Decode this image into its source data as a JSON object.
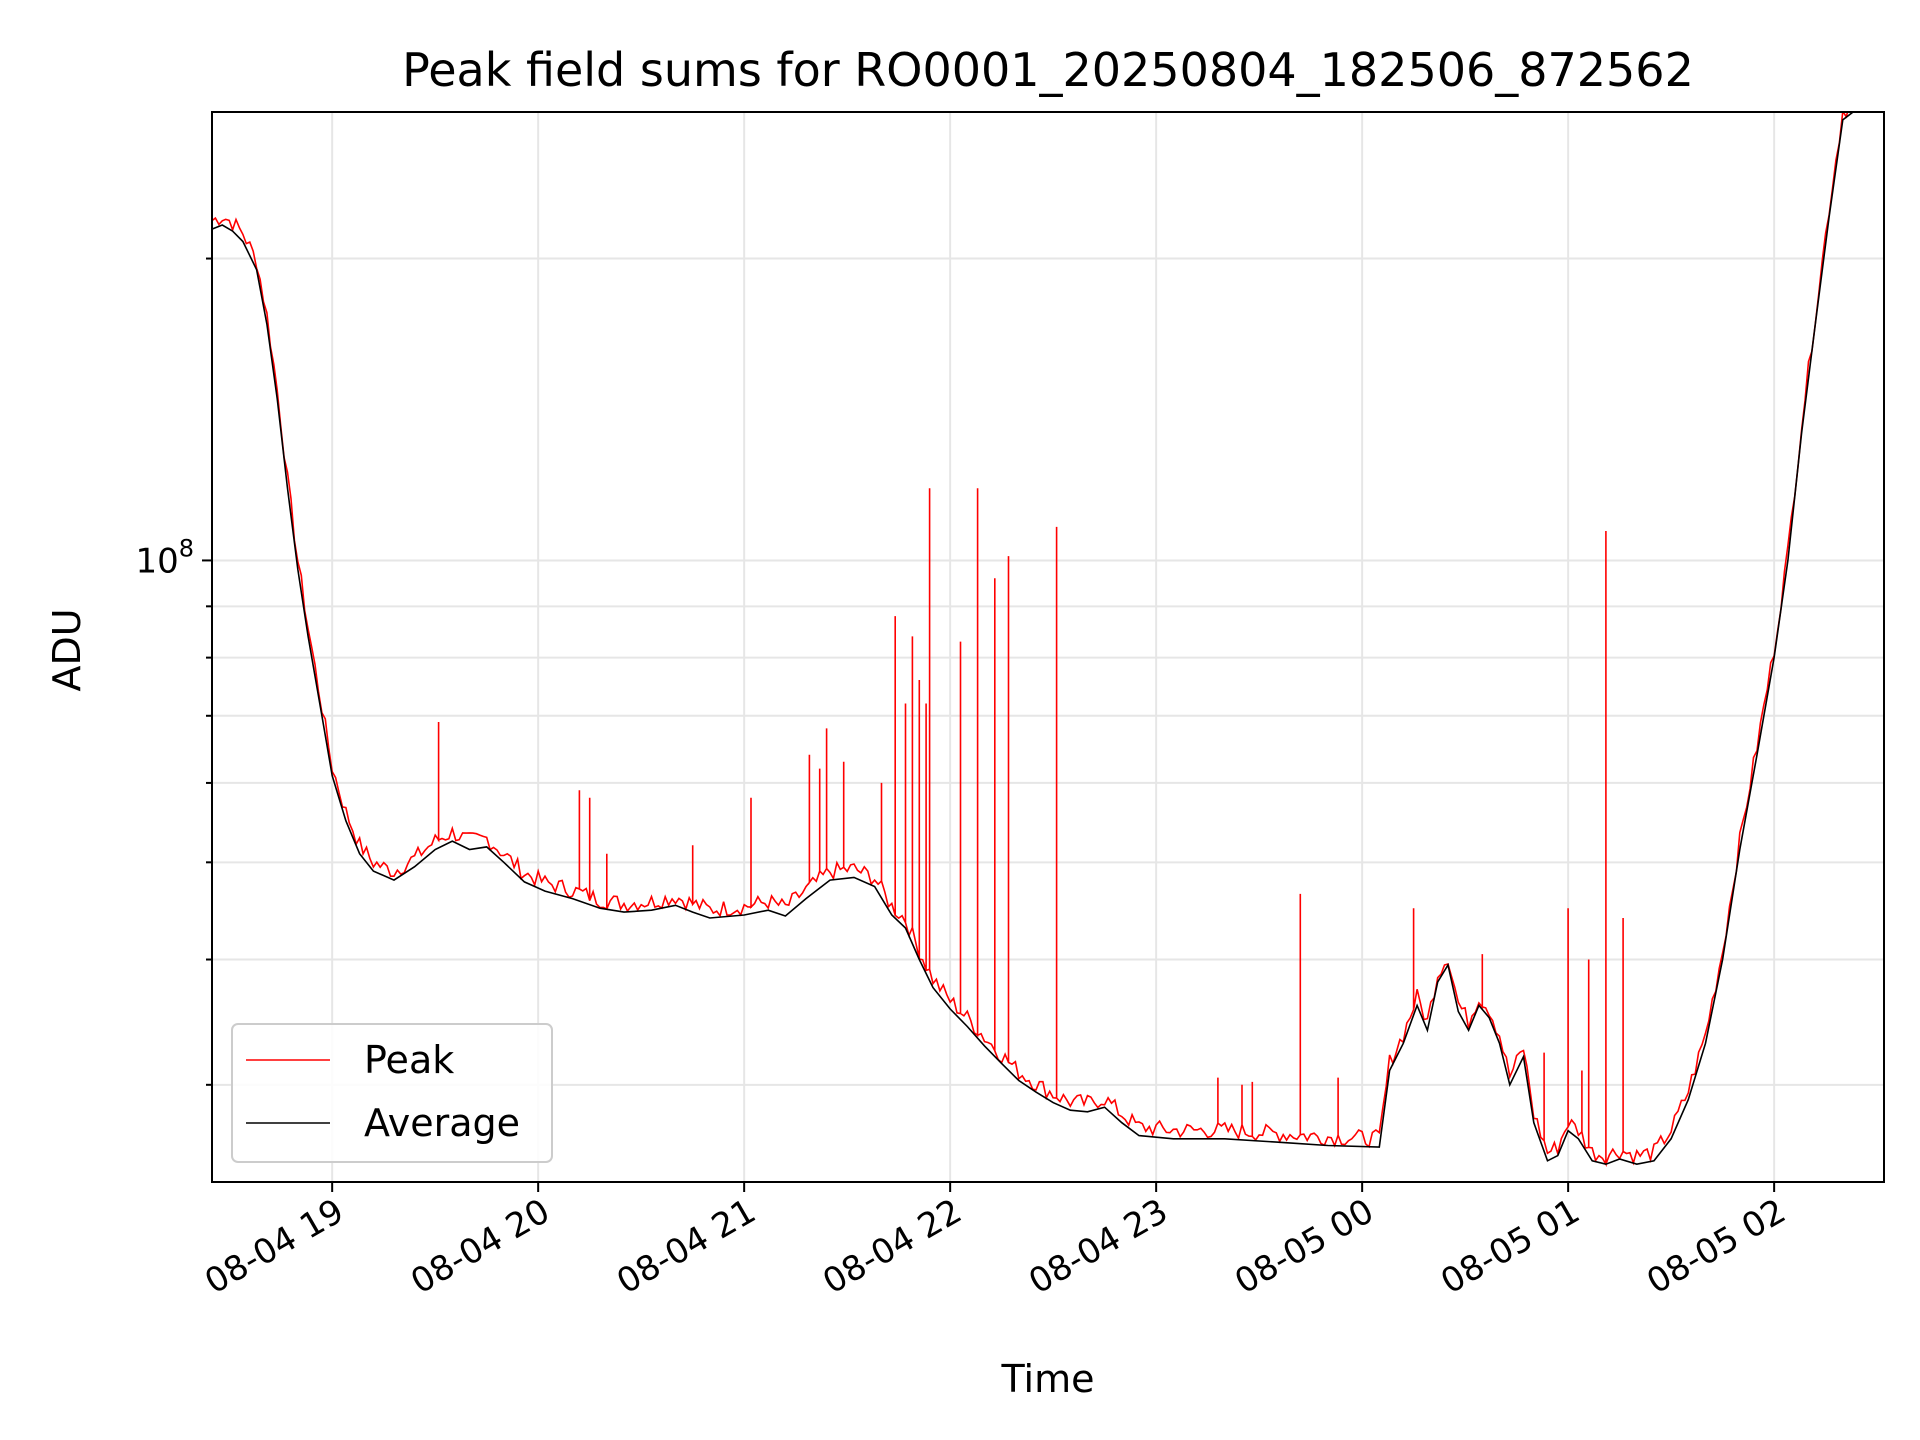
{
  "chart_data": {
    "type": "line",
    "title": "Peak field sums for RO0001_20250804_182506_872562",
    "xlabel": "Time",
    "ylabel": "ADU",
    "y_scale": "log",
    "xlim": [
      "2025-08-04 18:25",
      "2025-08-05 02:32"
    ],
    "ylim": [
      24000000,
      280000000
    ],
    "x_ticks": [
      {
        "label": "08-04 19",
        "value": "2025-08-04 19:00"
      },
      {
        "label": "08-04 20",
        "value": "2025-08-04 20:00"
      },
      {
        "label": "08-04 21",
        "value": "2025-08-04 21:00"
      },
      {
        "label": "08-04 22",
        "value": "2025-08-04 22:00"
      },
      {
        "label": "08-04 23",
        "value": "2025-08-04 23:00"
      },
      {
        "label": "08-05 00",
        "value": "2025-08-05 00:00"
      },
      {
        "label": "08-05 01",
        "value": "2025-08-05 01:00"
      },
      {
        "label": "08-05 02",
        "value": "2025-08-05 02:00"
      }
    ],
    "y_ticks": [
      {
        "label": "10",
        "exponent": "8",
        "value": 100000000
      }
    ],
    "grid": true,
    "legend_position": "lower-left",
    "series": [
      {
        "name": "Average",
        "color": "#000000",
        "points": [
          [
            "2025-08-04 18:25",
            214000000
          ],
          [
            "2025-08-04 18:28",
            216000000
          ],
          [
            "2025-08-04 18:31",
            213000000
          ],
          [
            "2025-08-04 18:34",
            208000000
          ],
          [
            "2025-08-04 18:38",
            195000000
          ],
          [
            "2025-08-04 18:41",
            172000000
          ],
          [
            "2025-08-04 18:44",
            145000000
          ],
          [
            "2025-08-04 18:47",
            118000000
          ],
          [
            "2025-08-04 18:50",
            98000000
          ],
          [
            "2025-08-04 18:53",
            84000000
          ],
          [
            "2025-08-04 18:57",
            70000000
          ],
          [
            "2025-08-04 19:00",
            61000000
          ],
          [
            "2025-08-04 19:04",
            55000000
          ],
          [
            "2025-08-04 19:08",
            51000000
          ],
          [
            "2025-08-04 19:12",
            49000000
          ],
          [
            "2025-08-04 19:18",
            48000000
          ],
          [
            "2025-08-04 19:24",
            49500000
          ],
          [
            "2025-08-04 19:30",
            51500000
          ],
          [
            "2025-08-04 19:35",
            52500000
          ],
          [
            "2025-08-04 19:40",
            51500000
          ],
          [
            "2025-08-04 19:45",
            51800000
          ],
          [
            "2025-08-04 19:50",
            50000000
          ],
          [
            "2025-08-04 19:56",
            47800000
          ],
          [
            "2025-08-04 20:02",
            46800000
          ],
          [
            "2025-08-04 20:10",
            46000000
          ],
          [
            "2025-08-04 20:18",
            45000000
          ],
          [
            "2025-08-04 20:25",
            44600000
          ],
          [
            "2025-08-04 20:33",
            44800000
          ],
          [
            "2025-08-04 20:40",
            45300000
          ],
          [
            "2025-08-04 20:45",
            44600000
          ],
          [
            "2025-08-04 20:50",
            44000000
          ],
          [
            "2025-08-04 21:00",
            44300000
          ],
          [
            "2025-08-04 21:07",
            44800000
          ],
          [
            "2025-08-04 21:12",
            44200000
          ],
          [
            "2025-08-04 21:18",
            46000000
          ],
          [
            "2025-08-04 21:25",
            48000000
          ],
          [
            "2025-08-04 21:32",
            48300000
          ],
          [
            "2025-08-04 21:38",
            47300000
          ],
          [
            "2025-08-04 21:43",
            44300000
          ],
          [
            "2025-08-04 21:47",
            43000000
          ],
          [
            "2025-08-04 21:51",
            40000000
          ],
          [
            "2025-08-04 21:55",
            37500000
          ],
          [
            "2025-08-04 22:00",
            35700000
          ],
          [
            "2025-08-04 22:05",
            34300000
          ],
          [
            "2025-08-04 22:10",
            32800000
          ],
          [
            "2025-08-04 22:15",
            31500000
          ],
          [
            "2025-08-04 22:20",
            30300000
          ],
          [
            "2025-08-04 22:25",
            29500000
          ],
          [
            "2025-08-04 22:30",
            28800000
          ],
          [
            "2025-08-04 22:35",
            28300000
          ],
          [
            "2025-08-04 22:40",
            28200000
          ],
          [
            "2025-08-04 22:45",
            28500000
          ],
          [
            "2025-08-04 22:50",
            27500000
          ],
          [
            "2025-08-04 22:55",
            26700000
          ],
          [
            "2025-08-04 23:05",
            26500000
          ],
          [
            "2025-08-04 23:20",
            26500000
          ],
          [
            "2025-08-04 23:35",
            26300000
          ],
          [
            "2025-08-04 23:50",
            26100000
          ],
          [
            "2025-08-05 00:05",
            26000000
          ],
          [
            "2025-08-05 00:08",
            31000000
          ],
          [
            "2025-08-05 00:12",
            33000000
          ],
          [
            "2025-08-05 00:16",
            36000000
          ],
          [
            "2025-08-05 00:19",
            34000000
          ],
          [
            "2025-08-05 00:22",
            38000000
          ],
          [
            "2025-08-05 00:25",
            39500000
          ],
          [
            "2025-08-05 00:28",
            35500000
          ],
          [
            "2025-08-05 00:31",
            34000000
          ],
          [
            "2025-08-05 00:34",
            36000000
          ],
          [
            "2025-08-05 00:37",
            35000000
          ],
          [
            "2025-08-05 00:40",
            33000000
          ],
          [
            "2025-08-05 00:43",
            30000000
          ],
          [
            "2025-08-05 00:47",
            32000000
          ],
          [
            "2025-08-05 00:50",
            27500000
          ],
          [
            "2025-08-05 00:54",
            25200000
          ],
          [
            "2025-08-05 00:57",
            25500000
          ],
          [
            "2025-08-05 01:00",
            27000000
          ],
          [
            "2025-08-05 01:03",
            26500000
          ],
          [
            "2025-08-05 01:07",
            25200000
          ],
          [
            "2025-08-05 01:11",
            25000000
          ],
          [
            "2025-08-05 01:15",
            25300000
          ],
          [
            "2025-08-05 01:20",
            25000000
          ],
          [
            "2025-08-05 01:25",
            25200000
          ],
          [
            "2025-08-05 01:30",
            26500000
          ],
          [
            "2025-08-05 01:35",
            29000000
          ],
          [
            "2025-08-05 01:40",
            33000000
          ],
          [
            "2025-08-05 01:45",
            40000000
          ],
          [
            "2025-08-05 01:50",
            51500000
          ],
          [
            "2025-08-05 01:55",
            64000000
          ],
          [
            "2025-08-05 02:00",
            80000000
          ],
          [
            "2025-08-05 02:04",
            100000000
          ],
          [
            "2025-08-05 02:08",
            134000000
          ],
          [
            "2025-08-05 02:12",
            172000000
          ],
          [
            "2025-08-05 02:16",
            220000000
          ],
          [
            "2025-08-05 02:20",
            275000000
          ],
          [
            "2025-08-05 02:23",
            280000000
          ]
        ]
      },
      {
        "name": "Peak",
        "color": "#ff0000",
        "spikes": [
          [
            "2025-08-04 19:31",
            69000000
          ],
          [
            "2025-08-04 20:12",
            59000000
          ],
          [
            "2025-08-04 20:15",
            58000000
          ],
          [
            "2025-08-04 20:20",
            51000000
          ],
          [
            "2025-08-04 20:45",
            52000000
          ],
          [
            "2025-08-04 21:02",
            58000000
          ],
          [
            "2025-08-04 21:19",
            64000000
          ],
          [
            "2025-08-04 21:22",
            62000000
          ],
          [
            "2025-08-04 21:24",
            68000000
          ],
          [
            "2025-08-04 21:29",
            63000000
          ],
          [
            "2025-08-04 21:40",
            60000000
          ],
          [
            "2025-08-04 21:44",
            88000000
          ],
          [
            "2025-08-04 21:47",
            72000000
          ],
          [
            "2025-08-04 21:49",
            84000000
          ],
          [
            "2025-08-04 21:51",
            76000000
          ],
          [
            "2025-08-04 21:53",
            72000000
          ],
          [
            "2025-08-04 21:54",
            118000000
          ],
          [
            "2025-08-04 22:03",
            83000000
          ],
          [
            "2025-08-04 22:08",
            118000000
          ],
          [
            "2025-08-04 22:13",
            96000000
          ],
          [
            "2025-08-04 22:17",
            101000000
          ],
          [
            "2025-08-04 22:31",
            108000000
          ],
          [
            "2025-08-04 23:18",
            30500000
          ],
          [
            "2025-08-04 23:25",
            30000000
          ],
          [
            "2025-08-04 23:28",
            30200000
          ],
          [
            "2025-08-04 23:42",
            46500000
          ],
          [
            "2025-08-04 23:53",
            30500000
          ],
          [
            "2025-08-05 00:15",
            45000000
          ],
          [
            "2025-08-05 00:35",
            40500000
          ],
          [
            "2025-08-05 00:53",
            32300000
          ],
          [
            "2025-08-05 01:00",
            45000000
          ],
          [
            "2025-08-05 01:04",
            31000000
          ],
          [
            "2025-08-05 01:06",
            40000000
          ],
          [
            "2025-08-05 01:11",
            107000000
          ],
          [
            "2025-08-05 01:16",
            44000000
          ]
        ]
      }
    ]
  }
}
